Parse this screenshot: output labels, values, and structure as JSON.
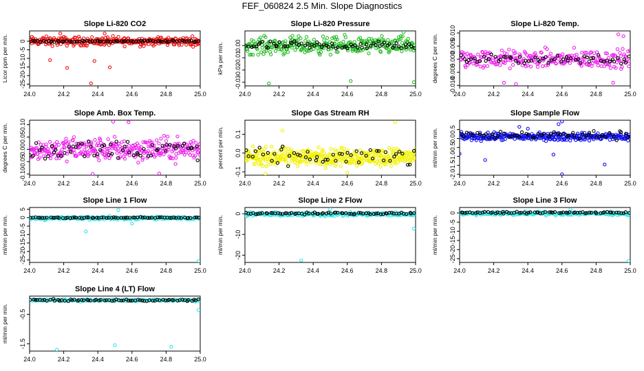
{
  "title": "FEF_060824  2.5 Min. Slope Diagnostics",
  "colors": {
    "black": "#000000",
    "red": "#ee1111",
    "green": "#22bb22",
    "magenta": "#ee22ee",
    "yellow": "#f2f200",
    "blue": "#1111ee",
    "cyan": "#33e6e6"
  },
  "chart_data": [
    {
      "type": "scatter",
      "title": "Slope Li-820 CO2",
      "xlabel": "",
      "ylabel": "Licor ppm per min.",
      "xlim": [
        24.0,
        25.0
      ],
      "ylim": [
        -26,
        6
      ],
      "xticks": [
        "24.0",
        "24.2",
        "24.4",
        "24.6",
        "24.8",
        "25.0"
      ],
      "yticks": [
        {
          "value": 0,
          "label": "0"
        },
        {
          "value": -5,
          "label": "-5"
        },
        {
          "value": -10,
          "label": "-10"
        },
        {
          "value": -15,
          "label": "-15"
        },
        {
          "value": -20,
          "label": "-20"
        },
        {
          "value": -25,
          "label": "-25"
        }
      ],
      "series": [
        {
          "name": "all",
          "color": "#ee1111",
          "n": 300,
          "center": 0,
          "spread": 2.2,
          "x_from": 24.0,
          "x_to": 25.0,
          "outliers": [
            [
              24.22,
              -15.5
            ],
            [
              24.36,
              -24.5
            ],
            [
              24.47,
              -15.2
            ],
            [
              24.38,
              -11.5
            ],
            [
              24.12,
              -11
            ],
            [
              24.18,
              4.5
            ],
            [
              24.44,
              4.5
            ]
          ]
        },
        {
          "name": "selected",
          "color": "#000000",
          "n": 70,
          "center": 0,
          "spread": 0.4,
          "x_from": 24.0,
          "x_to": 25.0,
          "outliers": []
        }
      ]
    },
    {
      "type": "scatter",
      "title": "Slope Li-820 Pressure",
      "xlabel": "",
      "ylabel": "kPa per min.",
      "xlim": [
        24.0,
        25.0
      ],
      "ylim": [
        -0.033,
        0.012
      ],
      "xticks": [
        "24.0",
        "24.2",
        "24.4",
        "24.6",
        "24.8",
        "25.0"
      ],
      "yticks": [
        {
          "value": 0.0,
          "label": "0.00"
        },
        {
          "value": -0.01,
          "label": "-0.01"
        },
        {
          "value": -0.02,
          "label": "-0.02"
        },
        {
          "value": -0.03,
          "label": "-0.03"
        }
      ],
      "series": [
        {
          "name": "all",
          "color": "#22bb22",
          "n": 300,
          "center": 0.0,
          "spread": 0.006,
          "x_from": 24.0,
          "x_to": 25.0,
          "outliers": [
            [
              24.14,
              -0.031
            ],
            [
              24.62,
              -0.029
            ],
            [
              24.99,
              -0.03
            ],
            [
              24.93,
              0.011
            ]
          ]
        },
        {
          "name": "selected",
          "color": "#000000",
          "n": 70,
          "center": 0.0,
          "spread": 0.003,
          "x_from": 24.0,
          "x_to": 25.0,
          "outliers": []
        }
      ]
    },
    {
      "type": "scatter",
      "title": "Slope Li-820 Temp.",
      "xlabel": "",
      "ylabel": "degrees C per min.",
      "xlim": [
        24.0,
        25.0
      ],
      "ylim": [
        -0.0102,
        0.0108
      ],
      "xticks": [
        "24.0",
        "24.2",
        "24.4",
        "24.6",
        "24.8",
        "25.0"
      ],
      "yticks": [
        {
          "value": 0.01,
          "label": "0.010"
        },
        {
          "value": 0.005,
          "label": "0.005"
        },
        {
          "value": 0.0,
          "label": "0.000"
        },
        {
          "value": -0.005,
          "label": "-0.005"
        },
        {
          "value": -0.01,
          "label": "-0.010"
        }
      ],
      "series": [
        {
          "name": "all",
          "color": "#ee22ee",
          "n": 260,
          "center": 0.0,
          "spread": 0.003,
          "x_from": 24.0,
          "x_to": 25.0,
          "outliers": [
            [
              24.26,
              -0.009
            ],
            [
              24.33,
              -0.0095
            ],
            [
              24.93,
              0.0095
            ],
            [
              24.96,
              0.0088
            ],
            [
              24.9,
              -0.009
            ]
          ]
        },
        {
          "name": "selected",
          "color": "#000000",
          "n": 60,
          "center": 0.0,
          "spread": 0.0015,
          "x_from": 24.0,
          "x_to": 25.0,
          "outliers": []
        }
      ]
    },
    {
      "type": "scatter",
      "title": "Slope Amb. Box Temp.",
      "xlabel": "",
      "ylabel": "degrees C per min.",
      "xlim": [
        24.0,
        25.0
      ],
      "ylim": [
        -0.105,
        0.118
      ],
      "xticks": [
        "24.0",
        "24.2",
        "24.4",
        "24.6",
        "24.8",
        "25.0"
      ],
      "yticks": [
        {
          "value": 0.1,
          "label": "0.10"
        },
        {
          "value": 0.05,
          "label": "0.05"
        },
        {
          "value": 0.0,
          "label": "0.00"
        },
        {
          "value": -0.05,
          "label": "-0.05"
        },
        {
          "value": -0.1,
          "label": "-0.10"
        }
      ],
      "series": [
        {
          "name": "all",
          "color": "#ee22ee",
          "n": 320,
          "center": 0.0,
          "spread": 0.04,
          "x_from": 24.0,
          "x_to": 25.0,
          "outliers": [
            [
              24.49,
              0.112
            ],
            [
              24.58,
              0.11
            ],
            [
              24.37,
              -0.1
            ],
            [
              24.76,
              -0.098
            ]
          ]
        },
        {
          "name": "selected",
          "color": "#000000",
          "n": 60,
          "center": 0.0,
          "spread": 0.035,
          "x_from": 24.0,
          "x_to": 25.0,
          "outliers": []
        }
      ]
    },
    {
      "type": "scatter",
      "title": "Slope Gas Stream RH",
      "xlabel": "",
      "ylabel": "percent per min.",
      "xlim": [
        24.0,
        25.0
      ],
      "ylim": [
        -0.118,
        0.175
      ],
      "xticks": [
        "24.0",
        "24.2",
        "24.4",
        "24.6",
        "24.8",
        "25.0"
      ],
      "yticks": [
        {
          "value": 0.1,
          "label": "0.1"
        },
        {
          "value": 0.0,
          "label": "0.0"
        },
        {
          "value": -0.1,
          "label": "-0.1"
        }
      ],
      "series": [
        {
          "name": "all",
          "color": "#f2f200",
          "n": 420,
          "center": -0.02,
          "spread": 0.04,
          "x_from": 24.0,
          "x_to": 25.0,
          "outliers": [
            [
              24.88,
              0.165
            ],
            [
              24.22,
              0.12
            ],
            [
              24.12,
              -0.11
            ],
            [
              24.6,
              -0.105
            ]
          ]
        },
        {
          "name": "selected",
          "color": "#000000",
          "n": 50,
          "center": -0.02,
          "spread": 0.04,
          "x_from": 24.0,
          "x_to": 25.0,
          "outliers": []
        }
      ]
    },
    {
      "type": "scatter",
      "title": "Slope Sample Flow",
      "xlabel": "",
      "ylabel": "ml/min per min.",
      "xlim": [
        24.0,
        25.0
      ],
      "ylim": [
        -2.05,
        1.02
      ],
      "xticks": [
        "24.0",
        "24.2",
        "24.4",
        "24.6",
        "24.8",
        "25.0"
      ],
      "yticks": [
        {
          "value": 0.5,
          "label": "0.5"
        },
        {
          "value": 0.0,
          "label": "0.0"
        },
        {
          "value": -0.5,
          "label": "-0.5"
        },
        {
          "value": -1.0,
          "label": "-1.0"
        },
        {
          "value": -1.5,
          "label": "-1.5"
        },
        {
          "value": -2.0,
          "label": "-2.0"
        }
      ],
      "series": [
        {
          "name": "all",
          "color": "#1111ee",
          "n": 320,
          "center": 0.1,
          "spread": 0.18,
          "x_from": 24.0,
          "x_to": 25.0,
          "outliers": [
            [
              24.15,
              -1.2
            ],
            [
              24.0,
              -0.85
            ],
            [
              24.6,
              -2.0
            ],
            [
              24.6,
              0.95
            ],
            [
              24.58,
              0.8
            ],
            [
              24.35,
              0.65
            ],
            [
              24.4,
              0.55
            ],
            [
              24.85,
              -1.45
            ],
            [
              24.55,
              -0.9
            ]
          ]
        },
        {
          "name": "selected",
          "color": "#000000",
          "n": 55,
          "center": 0.2,
          "spread": 0.2,
          "x_from": 24.0,
          "x_to": 25.0,
          "outliers": []
        }
      ]
    },
    {
      "type": "scatter",
      "title": "Slope Line 1 Flow",
      "xlabel": "",
      "ylabel": "ml/min per min.",
      "xlim": [
        24.0,
        25.0
      ],
      "ylim": [
        -26.5,
        6
      ],
      "xticks": [
        "24.0",
        "24.2",
        "24.4",
        "24.6",
        "24.8",
        "25.0"
      ],
      "yticks": [
        {
          "value": 5,
          "label": "5"
        },
        {
          "value": 0,
          "label": "0"
        },
        {
          "value": -5,
          "label": "-5"
        },
        {
          "value": -10,
          "label": "-10"
        },
        {
          "value": -15,
          "label": "-15"
        },
        {
          "value": -20,
          "label": "-20"
        },
        {
          "value": -25,
          "label": "-25"
        }
      ],
      "series": [
        {
          "name": "all",
          "color": "#33e6e6",
          "n": 200,
          "center": -0.3,
          "spread": 0.9,
          "x_from": 24.0,
          "x_to": 25.0,
          "outliers": [
            [
              24.33,
              -8.2
            ],
            [
              24.52,
              4.5
            ],
            [
              24.99,
              -25.8
            ],
            [
              24.6,
              -3.5
            ]
          ]
        },
        {
          "name": "selected",
          "color": "#000000",
          "n": 70,
          "center": 0.0,
          "spread": 0.25,
          "x_from": 24.0,
          "x_to": 25.0,
          "outliers": []
        }
      ]
    },
    {
      "type": "scatter",
      "title": "Slope Line 2 Flow",
      "xlabel": "",
      "ylabel": "ml/min per min.",
      "xlim": [
        24.0,
        25.0
      ],
      "ylim": [
        -23.5,
        3
      ],
      "xticks": [
        "24.0",
        "24.2",
        "24.4",
        "24.6",
        "24.8",
        "25.0"
      ],
      "yticks": [
        {
          "value": 0,
          "label": "0"
        },
        {
          "value": -10,
          "label": "-10"
        },
        {
          "value": -20,
          "label": "-20"
        }
      ],
      "series": [
        {
          "name": "all",
          "color": "#33e6e6",
          "n": 220,
          "center": -0.3,
          "spread": 0.8,
          "x_from": 24.0,
          "x_to": 25.0,
          "outliers": [
            [
              24.33,
              -22.5
            ],
            [
              24.99,
              -7.2
            ],
            [
              24.5,
              2.2
            ]
          ]
        },
        {
          "name": "selected",
          "color": "#000000",
          "n": 70,
          "center": 0.2,
          "spread": 0.4,
          "x_from": 24.0,
          "x_to": 25.0,
          "outliers": []
        }
      ]
    },
    {
      "type": "scatter",
      "title": "Slope Line 3 Flow",
      "xlabel": "",
      "ylabel": "ml/min per min.",
      "xlim": [
        24.0,
        25.0
      ],
      "ylim": [
        -27,
        3
      ],
      "xticks": [
        "24.0",
        "24.2",
        "24.4",
        "24.6",
        "24.8",
        "25.0"
      ],
      "yticks": [
        {
          "value": 0,
          "label": "0"
        },
        {
          "value": -5,
          "label": "-5"
        },
        {
          "value": -10,
          "label": "-10"
        },
        {
          "value": -15,
          "label": "-15"
        },
        {
          "value": -20,
          "label": "-20"
        },
        {
          "value": -25,
          "label": "-25"
        }
      ],
      "series": [
        {
          "name": "all",
          "color": "#33e6e6",
          "n": 200,
          "center": -0.3,
          "spread": 0.8,
          "x_from": 24.0,
          "x_to": 25.0,
          "outliers": [
            [
              24.99,
              -26.2
            ],
            [
              24.65,
              2.0
            ]
          ]
        },
        {
          "name": "selected",
          "color": "#000000",
          "n": 70,
          "center": 0.2,
          "spread": 0.4,
          "x_from": 24.0,
          "x_to": 25.0,
          "outliers": []
        }
      ]
    },
    {
      "type": "scatter",
      "title": "Slope Line 4 (LT) Flow",
      "xlabel": "",
      "ylabel": "ml/min per min.",
      "xlim": [
        24.0,
        25.0
      ],
      "ylim": [
        -1.75,
        0.12
      ],
      "xticks": [
        "24.0",
        "24.2",
        "24.4",
        "24.6",
        "24.8",
        "25.0"
      ],
      "yticks": [
        {
          "value": -0.5,
          "label": "-0.5"
        },
        {
          "value": -1.5,
          "label": "-1.5"
        }
      ],
      "series": [
        {
          "name": "all",
          "color": "#33e6e6",
          "n": 150,
          "center": -0.02,
          "spread": 0.03,
          "x_from": 24.0,
          "x_to": 25.0,
          "outliers": [
            [
              24.16,
              -1.7
            ],
            [
              24.5,
              -1.55
            ],
            [
              24.83,
              -1.6
            ],
            [
              24.99,
              -0.35
            ]
          ]
        },
        {
          "name": "selected",
          "color": "#000000",
          "n": 70,
          "center": -0.02,
          "spread": 0.03,
          "x_from": 24.0,
          "x_to": 25.0,
          "outliers": []
        }
      ]
    }
  ]
}
